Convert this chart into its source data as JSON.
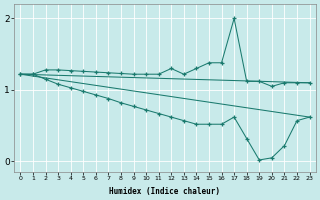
{
  "xlabel": "Humidex (Indice chaleur)",
  "background_color": "#c8eaea",
  "line_color": "#1a7a6e",
  "grid_color": "#ffffff",
  "x_values": [
    0,
    1,
    2,
    3,
    4,
    5,
    6,
    7,
    8,
    9,
    10,
    11,
    12,
    13,
    14,
    15,
    16,
    17,
    18,
    19,
    20,
    21,
    22,
    23
  ],
  "y_upper": [
    1.22,
    1.22,
    1.28,
    1.28,
    1.27,
    1.26,
    1.25,
    1.24,
    1.23,
    1.22,
    1.22,
    1.22,
    1.3,
    1.22,
    1.3,
    1.38,
    1.38,
    2.0,
    1.12,
    1.12,
    1.05,
    1.1,
    1.1,
    1.1
  ],
  "y_lower": [
    1.22,
    1.22,
    1.15,
    1.08,
    1.03,
    0.98,
    0.93,
    0.88,
    0.82,
    0.77,
    0.72,
    0.67,
    0.62,
    0.57,
    0.52,
    0.52,
    0.52,
    0.62,
    0.32,
    0.02,
    0.05,
    0.22,
    0.57,
    0.62
  ],
  "ylim": [
    -0.15,
    2.2
  ],
  "xlim": [
    -0.5,
    23.5
  ],
  "yticks": [
    0,
    1,
    2
  ],
  "xticks": [
    0,
    1,
    2,
    3,
    4,
    5,
    6,
    7,
    8,
    9,
    10,
    11,
    12,
    13,
    14,
    15,
    16,
    17,
    18,
    19,
    20,
    21,
    22,
    23
  ]
}
